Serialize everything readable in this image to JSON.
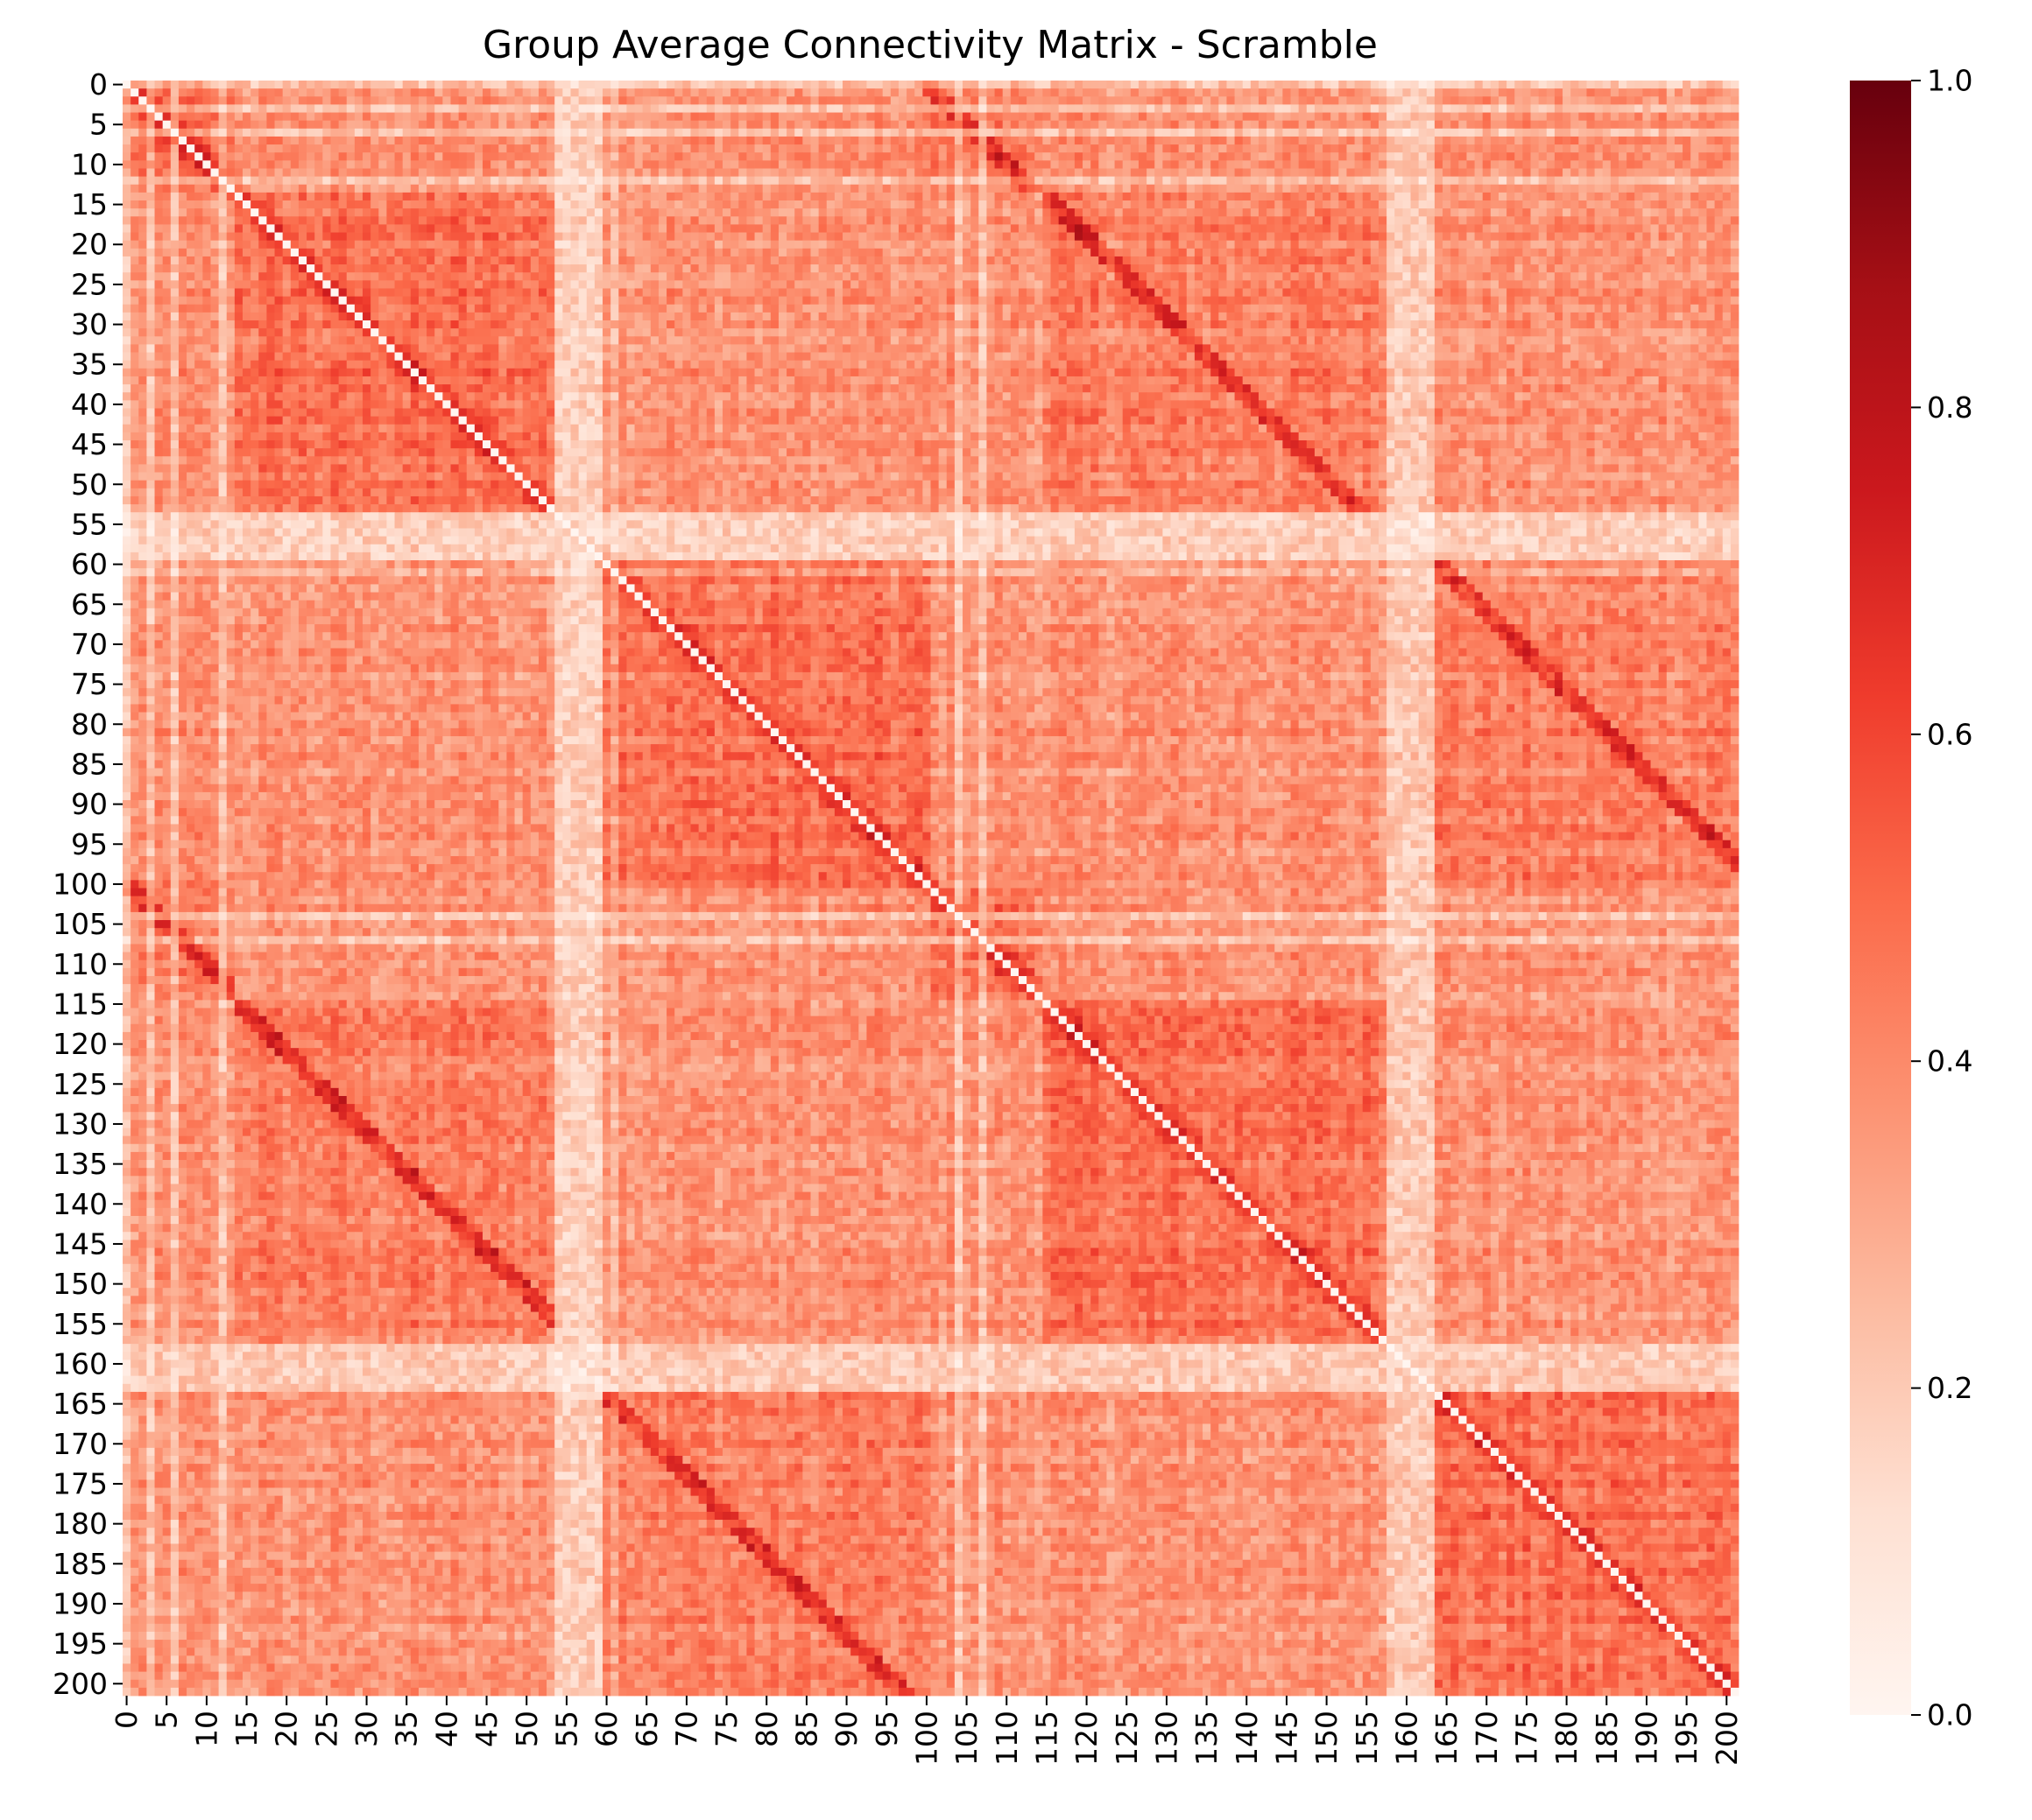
{
  "chart_data": {
    "type": "heatmap",
    "title": "Group Average Connectivity Matrix - Scramble",
    "xlabel": "",
    "ylabel": "",
    "n_rows": 202,
    "n_cols": 202,
    "colormap": "Reds",
    "color_range": [
      0.0,
      1.0
    ],
    "diagonal_value": 0.0,
    "x_tick_labels": [
      "0",
      "5",
      "10",
      "15",
      "20",
      "25",
      "30",
      "35",
      "40",
      "45",
      "50",
      "55",
      "60",
      "65",
      "70",
      "75",
      "80",
      "85",
      "90",
      "95",
      "100",
      "105",
      "110",
      "115",
      "120",
      "125",
      "130",
      "135",
      "140",
      "145",
      "150",
      "155",
      "160",
      "165",
      "170",
      "175",
      "180",
      "185",
      "190",
      "195",
      "200"
    ],
    "y_tick_labels": [
      "0",
      "5",
      "10",
      "15",
      "20",
      "25",
      "30",
      "35",
      "40",
      "45",
      "50",
      "55",
      "60",
      "65",
      "70",
      "75",
      "80",
      "85",
      "90",
      "95",
      "100",
      "105",
      "110",
      "115",
      "120",
      "125",
      "130",
      "135",
      "140",
      "145",
      "150",
      "155",
      "160",
      "165",
      "170",
      "175",
      "180",
      "185",
      "190",
      "195",
      "200"
    ],
    "colorbar": {
      "ticks": [
        0.0,
        0.2,
        0.4,
        0.6,
        0.8,
        1.0
      ],
      "tick_labels": [
        "0.0",
        "0.2",
        "0.4",
        "0.6",
        "0.8",
        "1.0"
      ]
    },
    "colors": {
      "low": "#fff5f0",
      "mid": "#fb6a4a",
      "high": "#67000d"
    }
  }
}
